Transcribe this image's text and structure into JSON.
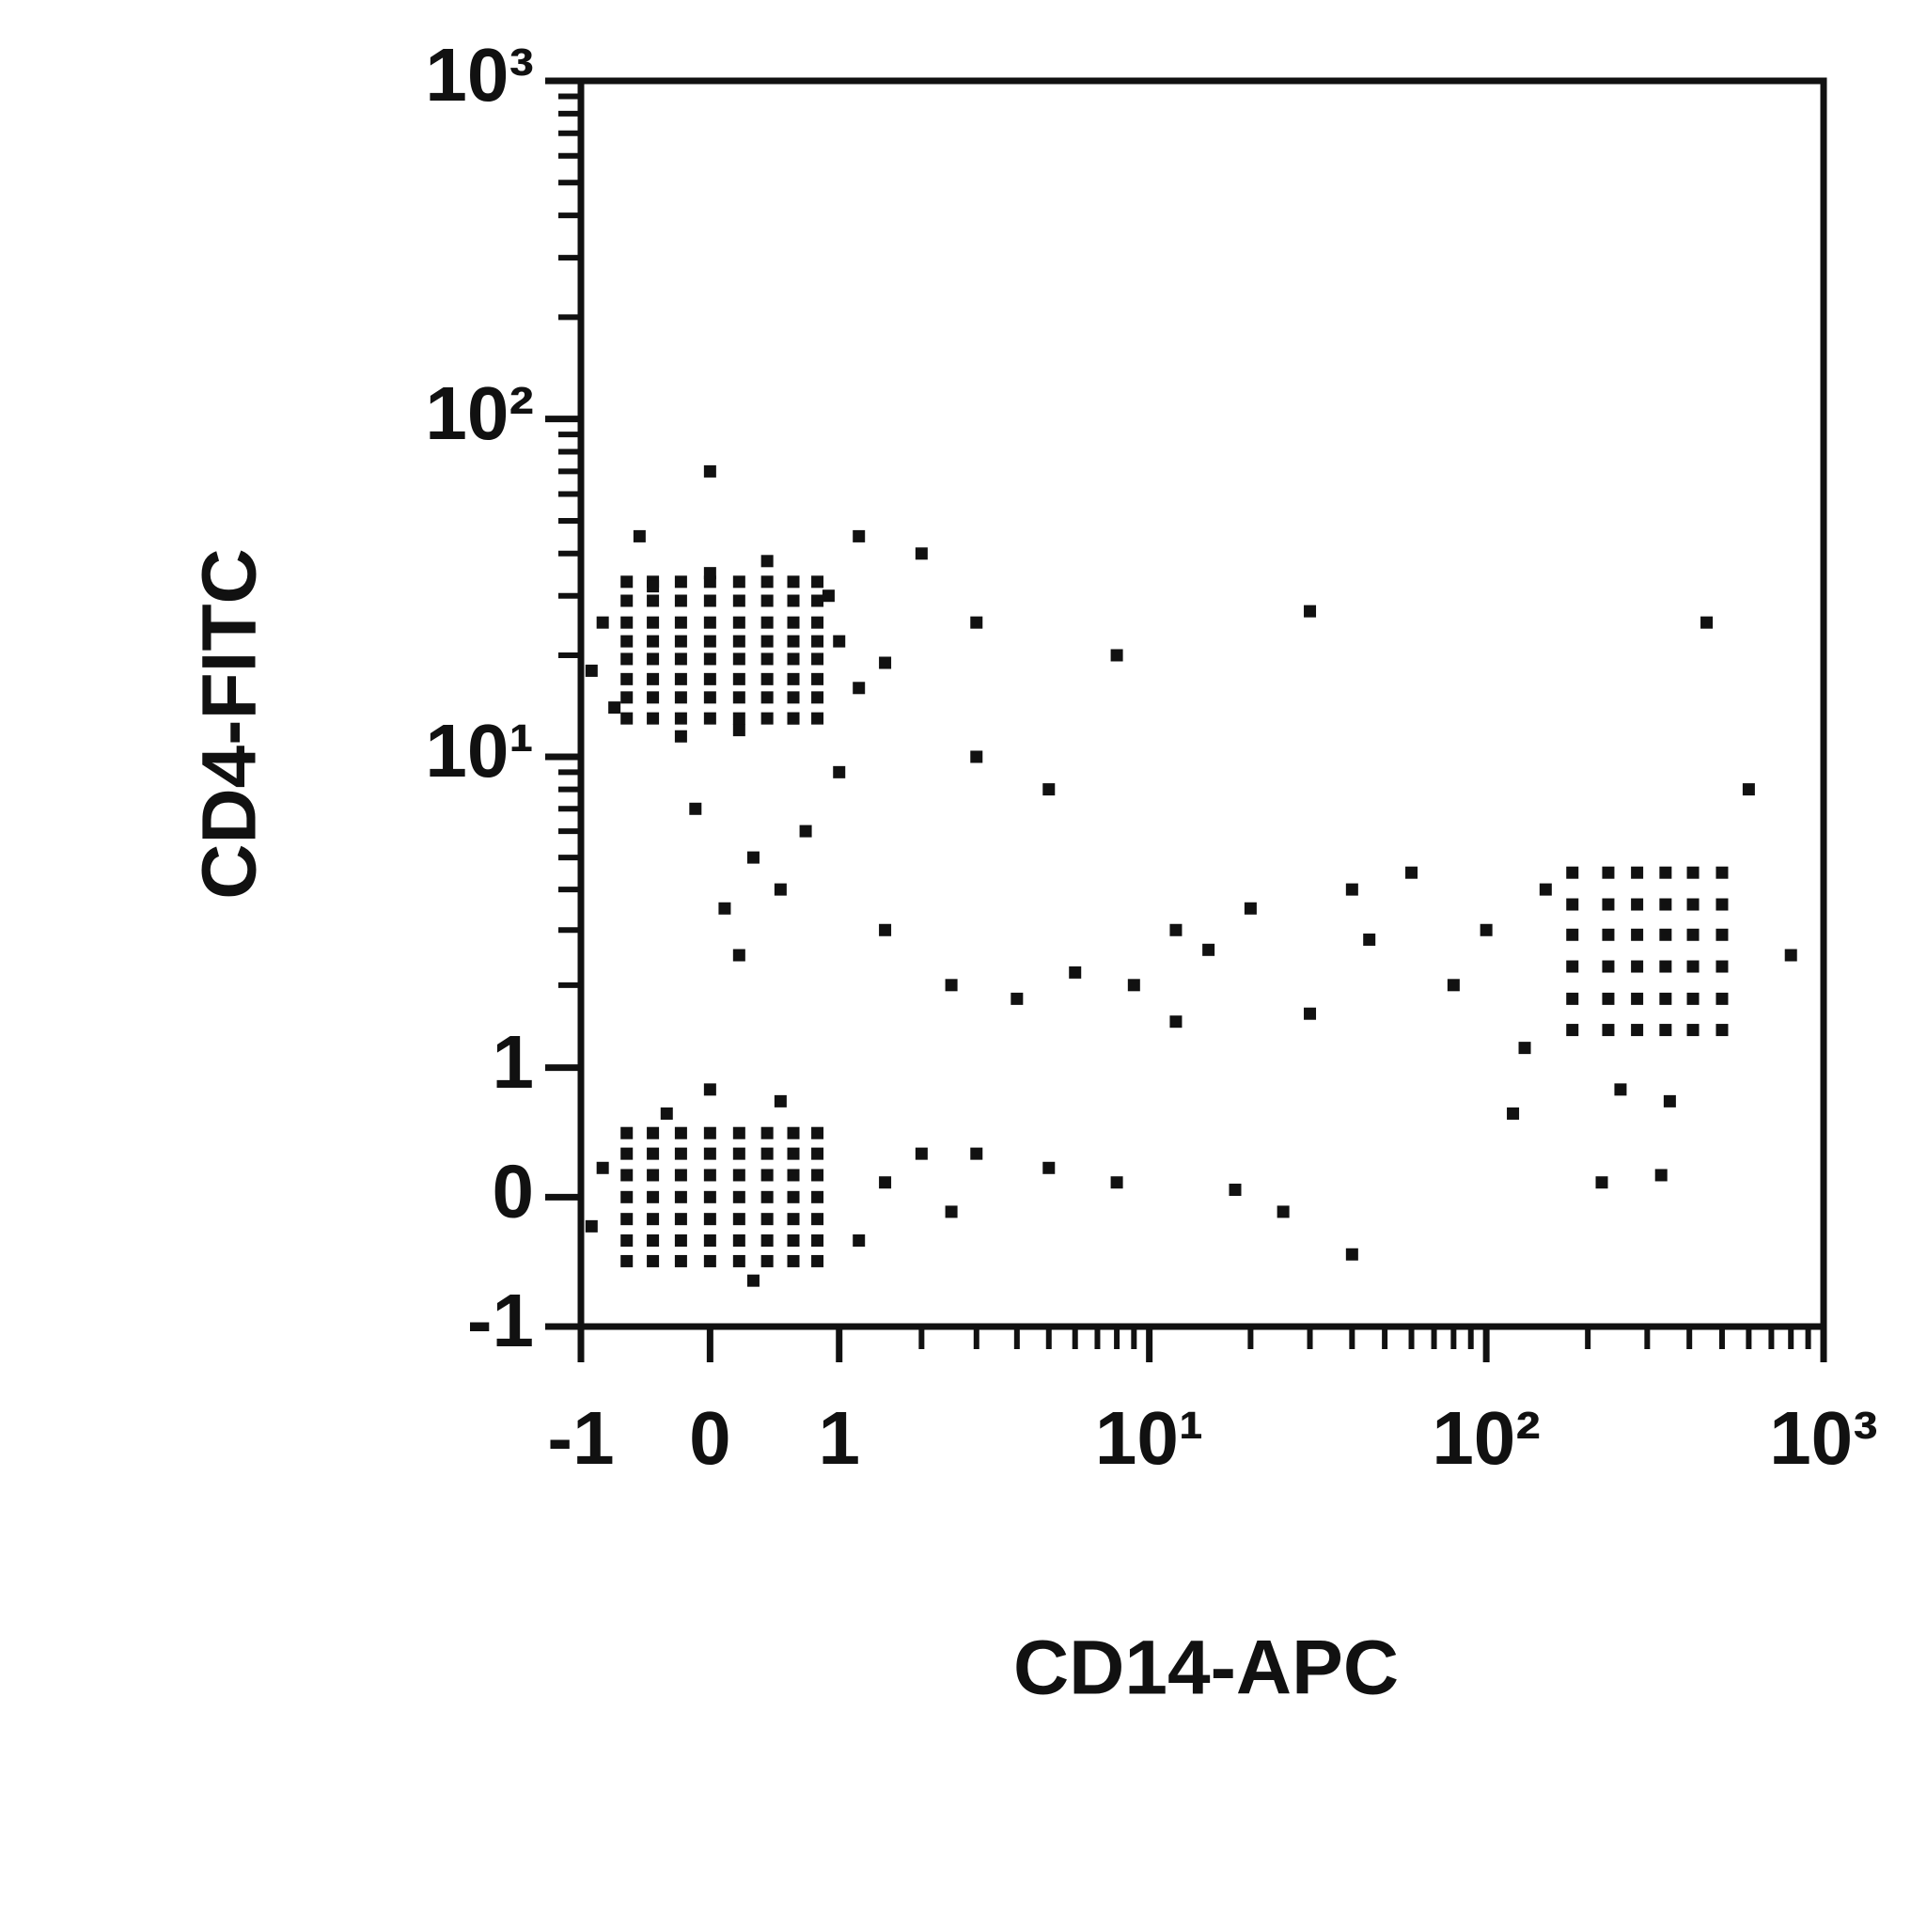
{
  "chart_data": {
    "type": "scatter",
    "color": "#111111",
    "xlabel": "CD14-APC",
    "ylabel": "CD4-FITC",
    "xscale": "asinh",
    "yscale": "asinh",
    "xlim": [
      -1,
      1000
    ],
    "ylim": [
      -1,
      1000
    ],
    "xticks": [
      -1,
      0,
      1,
      {
        "value": 10,
        "label": "10¹"
      },
      {
        "value": 100,
        "label": "10²"
      },
      {
        "value": 1000,
        "label": "10³"
      }
    ],
    "yticks": [
      -1,
      0,
      1,
      {
        "value": 10,
        "label": "10¹"
      },
      {
        "value": 100,
        "label": "10²"
      },
      {
        "value": 1000,
        "label": "10³"
      }
    ],
    "xminorticks": [
      2,
      3,
      4,
      5,
      6,
      7,
      8,
      9,
      20,
      30,
      40,
      50,
      60,
      70,
      80,
      90,
      200,
      300,
      400,
      500,
      600,
      700,
      800,
      900
    ],
    "yminorticks": [
      2,
      3,
      4,
      5,
      6,
      7,
      8,
      9,
      20,
      30,
      40,
      50,
      60,
      70,
      80,
      90,
      200,
      300,
      400,
      500,
      600,
      700,
      800,
      900
    ],
    "x": [
      -0.6,
      -0.4,
      -0.2,
      0,
      0.2,
      0.4,
      0.6,
      0.8,
      -0.6,
      -0.4,
      -0.2,
      0,
      0.2,
      0.4,
      0.6,
      0.8,
      -0.6,
      -0.4,
      -0.2,
      0,
      0.2,
      0.4,
      0.6,
      0.8,
      -0.6,
      -0.4,
      -0.2,
      0,
      0.2,
      0.4,
      0.6,
      0.8,
      -0.6,
      -0.4,
      -0.2,
      0,
      0.2,
      0.4,
      0.6,
      0.8,
      -0.6,
      -0.4,
      -0.2,
      0,
      0.2,
      0.4,
      0.6,
      0.8,
      -0.6,
      -0.4,
      -0.2,
      0,
      0.2,
      0.4,
      0.6,
      0.8,
      -0.6,
      -0.4,
      -0.2,
      0,
      0.2,
      0.4,
      0.6,
      0.8,
      -0.6,
      -0.4,
      -0.2,
      0,
      0.2,
      0.4,
      0.6,
      0.8,
      -0.6,
      -0.4,
      -0.2,
      0,
      0.2,
      0.4,
      0.6,
      0.8,
      -0.6,
      -0.4,
      -0.2,
      0,
      0.2,
      0.4,
      0.6,
      0.8,
      -0.6,
      -0.4,
      -0.2,
      0,
      0.2,
      0.4,
      0.6,
      0.8,
      -0.6,
      -0.4,
      -0.2,
      0,
      0.2,
      0.4,
      0.6,
      0.8,
      -0.6,
      -0.4,
      -0.2,
      0,
      0.2,
      0.4,
      0.6,
      0.8,
      -0.6,
      -0.4,
      -0.2,
      0,
      0.2,
      0.4,
      0.6,
      0.8,
      180,
      230,
      280,
      340,
      410,
      500,
      180,
      230,
      280,
      340,
      410,
      500,
      180,
      230,
      280,
      340,
      410,
      500,
      180,
      230,
      280,
      340,
      410,
      500,
      180,
      230,
      280,
      340,
      410,
      500,
      180,
      230,
      280,
      340,
      410,
      500,
      -0.8,
      -0.9,
      1.0,
      1.2,
      0.9,
      0.0,
      0.4,
      -0.4,
      0.2,
      0.6,
      -0.2,
      1.5,
      -0.7,
      0.3,
      0.1,
      -0.1,
      0.5,
      0.2,
      0.7,
      1.5,
      2.5,
      4,
      6,
      9,
      12,
      15,
      20,
      30,
      45,
      60,
      80,
      100,
      130,
      3,
      5,
      8,
      18,
      25,
      40,
      1.5,
      2,
      2.5,
      -0.8,
      -0.9,
      1.2,
      0.3,
      -0.3,
      0.5,
      0.0,
      3,
      8,
      30,
      450,
      220,
      330,
      600,
      800,
      0,
      1.2,
      -0.5,
      2,
      3,
      1,
      120,
      250,
      350,
      150,
      40,
      12,
      5
    ],
    "values": [
      13,
      13,
      13,
      13,
      13,
      13,
      13,
      13,
      15,
      15,
      15,
      15,
      15,
      15,
      15,
      15,
      17,
      17,
      17,
      17,
      17,
      17,
      17,
      17,
      19.5,
      19.5,
      19.5,
      19.5,
      19.5,
      19.5,
      19.5,
      19.5,
      22,
      22,
      22,
      22,
      22,
      22,
      22,
      22,
      25,
      25,
      25,
      25,
      25,
      25,
      25,
      25,
      29,
      29,
      29,
      29,
      29,
      29,
      29,
      29,
      33,
      33,
      33,
      33,
      33,
      33,
      33,
      33,
      -0.45,
      -0.45,
      -0.45,
      -0.45,
      -0.45,
      -0.45,
      -0.45,
      -0.45,
      -0.3,
      -0.3,
      -0.3,
      -0.3,
      -0.3,
      -0.3,
      -0.3,
      -0.3,
      -0.15,
      -0.15,
      -0.15,
      -0.15,
      -0.15,
      -0.15,
      -0.15,
      -0.15,
      0,
      0,
      0,
      0,
      0,
      0,
      0,
      0,
      0.15,
      0.15,
      0.15,
      0.15,
      0.15,
      0.15,
      0.15,
      0.15,
      0.3,
      0.3,
      0.3,
      0.3,
      0.3,
      0.3,
      0.3,
      0.3,
      0.45,
      0.45,
      0.45,
      0.45,
      0.45,
      0.45,
      0.45,
      0.45,
      1.4,
      1.4,
      1.4,
      1.4,
      1.4,
      1.4,
      1.8,
      1.8,
      1.8,
      1.8,
      1.8,
      1.8,
      2.3,
      2.3,
      2.3,
      2.3,
      2.3,
      2.3,
      2.9,
      2.9,
      2.9,
      2.9,
      2.9,
      2.9,
      3.6,
      3.6,
      3.6,
      3.6,
      3.6,
      3.6,
      4.5,
      4.5,
      4.5,
      4.5,
      4.5,
      4.5,
      25,
      18,
      22,
      16,
      30,
      35,
      38,
      32,
      12,
      13,
      11.5,
      19,
      14,
      5,
      3.5,
      7,
      4,
      2.5,
      6,
      3,
      2,
      1.8,
      2.2,
      2,
      1.5,
      2.6,
      3.5,
      1.6,
      2.8,
      4.5,
      2,
      3,
      1.2,
      0.3,
      0.2,
      0.1,
      0.05,
      -0.1,
      -0.4,
      0.1,
      0.3,
      -0.1,
      0.2,
      -0.2,
      -0.3,
      -0.6,
      0.6,
      0.7,
      0.8,
      25,
      20,
      27,
      25,
      0.1,
      0.15,
      8,
      2.5,
      70,
      45,
      45,
      40,
      10,
      9,
      0.6,
      0.8,
      0.7,
      4,
      4,
      3,
      8
    ]
  }
}
